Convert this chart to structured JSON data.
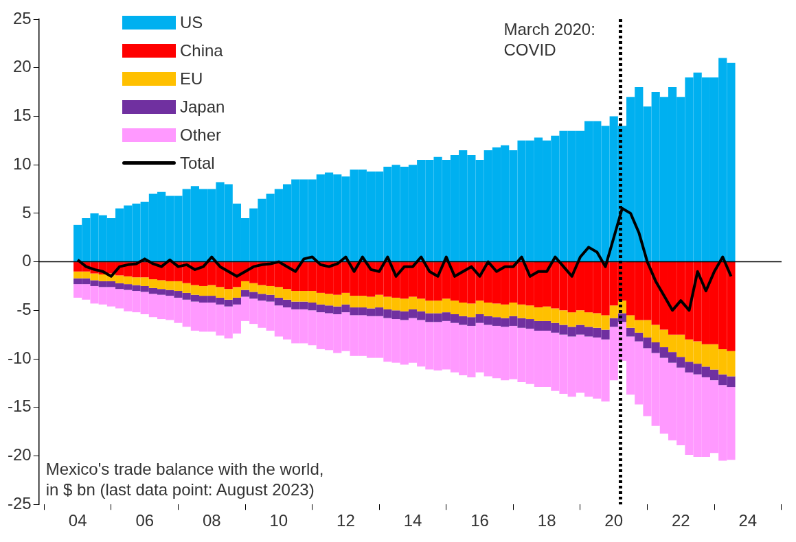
{
  "chart_data": {
    "type": "bar",
    "stacked": true,
    "x": [
      2004,
      2004.25,
      2004.5,
      2004.75,
      2005,
      2005.25,
      2005.5,
      2005.75,
      2006,
      2006.25,
      2006.5,
      2006.75,
      2007,
      2007.25,
      2007.5,
      2007.75,
      2008,
      2008.25,
      2008.5,
      2008.75,
      2009,
      2009.25,
      2009.5,
      2009.75,
      2010,
      2010.25,
      2010.5,
      2010.75,
      2011,
      2011.25,
      2011.5,
      2011.75,
      2012,
      2012.25,
      2012.5,
      2012.75,
      2013,
      2013.25,
      2013.5,
      2013.75,
      2014,
      2014.25,
      2014.5,
      2014.75,
      2015,
      2015.25,
      2015.5,
      2015.75,
      2016,
      2016.25,
      2016.5,
      2016.75,
      2017,
      2017.25,
      2017.5,
      2017.75,
      2018,
      2018.25,
      2018.5,
      2018.75,
      2019,
      2019.25,
      2019.5,
      2019.75,
      2020,
      2020.25,
      2020.5,
      2020.75,
      2021,
      2021.25,
      2021.5,
      2021.75,
      2022,
      2022.25,
      2022.5,
      2022.75,
      2023,
      2023.25,
      2023.5
    ],
    "series": [
      {
        "name": "US",
        "color": "#00b0f0",
        "values": [
          3.8,
          4.5,
          5,
          4.8,
          4.5,
          5.5,
          5.8,
          6,
          6.2,
          7,
          7.2,
          6.8,
          6.8,
          7.5,
          7.8,
          7.5,
          7.5,
          8.2,
          8,
          6,
          4.5,
          5.5,
          6.5,
          7,
          7.5,
          8,
          8.5,
          8.5,
          8.5,
          9,
          9.2,
          9,
          8.8,
          9.5,
          9.5,
          9.3,
          9.3,
          9.8,
          10,
          9.8,
          10,
          10.5,
          10.5,
          10.8,
          10.5,
          11,
          11.5,
          11,
          10.5,
          11.5,
          11.8,
          12,
          11.5,
          12.5,
          12.5,
          12.8,
          12.5,
          13,
          13.5,
          13.5,
          13.5,
          14.5,
          14.5,
          14,
          15,
          14,
          17,
          18,
          16,
          17.5,
          17,
          18,
          17,
          19,
          19.5,
          19,
          19,
          21,
          20.5
        ]
      },
      {
        "name": "China",
        "color": "#ff0000",
        "values": [
          -1,
          -1,
          -1.2,
          -1.3,
          -1.2,
          -1.4,
          -1.5,
          -1.6,
          -1.6,
          -1.8,
          -1.9,
          -2,
          -2,
          -2.2,
          -2.4,
          -2.5,
          -2.4,
          -2.6,
          -2.8,
          -2.6,
          -2,
          -2.2,
          -2.4,
          -2.5,
          -2.6,
          -2.8,
          -3,
          -3,
          -3,
          -3.2,
          -3.3,
          -3.4,
          -3.2,
          -3.5,
          -3.5,
          -3.6,
          -3.4,
          -3.6,
          -3.7,
          -3.8,
          -3.6,
          -3.8,
          -4,
          -4,
          -3.8,
          -4,
          -4.2,
          -4.3,
          -4,
          -4.2,
          -4.3,
          -4.4,
          -4.2,
          -4.4,
          -4.5,
          -4.7,
          -4.6,
          -4.8,
          -5,
          -5.2,
          -5,
          -5.2,
          -5.3,
          -5.5,
          -4.5,
          -4,
          -5.5,
          -6,
          -6,
          -6.5,
          -7,
          -7.5,
          -7.5,
          -8,
          -8.2,
          -8.5,
          -8.5,
          -9,
          -9.2
        ]
      },
      {
        "name": "EU",
        "color": "#ffc000",
        "values": [
          -0.7,
          -0.7,
          -0.7,
          -0.7,
          -0.8,
          -0.8,
          -0.8,
          -0.8,
          -0.9,
          -0.9,
          -0.9,
          -0.9,
          -1,
          -1,
          -1,
          -1,
          -1.1,
          -1.1,
          -1.1,
          -1.1,
          -0.9,
          -0.9,
          -0.9,
          -0.9,
          -1.1,
          -1.1,
          -1.1,
          -1.1,
          -1.2,
          -1.2,
          -1.2,
          -1.2,
          -1.2,
          -1.2,
          -1.2,
          -1.2,
          -1.3,
          -1.3,
          -1.3,
          -1.3,
          -1.3,
          -1.3,
          -1.3,
          -1.3,
          -1.4,
          -1.4,
          -1.4,
          -1.4,
          -1.4,
          -1.4,
          -1.4,
          -1.4,
          -1.4,
          -1.4,
          -1.4,
          -1.4,
          -1.5,
          -1.5,
          -1.5,
          -1.5,
          -1.5,
          -1.5,
          -1.5,
          -1.5,
          -1.3,
          -1.3,
          -1.3,
          -1.3,
          -1.8,
          -1.8,
          -1.8,
          -1.8,
          -2.3,
          -2.3,
          -2.3,
          -2.3,
          -2.6,
          -2.6,
          -2.6
        ]
      },
      {
        "name": "Japan",
        "color": "#7030a0",
        "values": [
          -0.6,
          -0.6,
          -0.6,
          -0.6,
          -0.6,
          -0.6,
          -0.6,
          -0.6,
          -0.6,
          -0.6,
          -0.6,
          -0.6,
          -0.7,
          -0.7,
          -0.7,
          -0.7,
          -0.7,
          -0.7,
          -0.7,
          -0.7,
          -0.7,
          -0.7,
          -0.7,
          -0.7,
          -0.8,
          -0.8,
          -0.8,
          -0.8,
          -0.8,
          -0.8,
          -0.8,
          -0.8,
          -0.8,
          -0.8,
          -0.8,
          -0.8,
          -0.9,
          -0.9,
          -0.9,
          -0.9,
          -0.9,
          -0.9,
          -0.9,
          -0.9,
          -0.9,
          -0.9,
          -0.9,
          -0.9,
          -0.9,
          -0.9,
          -0.9,
          -0.9,
          -1,
          -1,
          -1,
          -1,
          -1,
          -1,
          -1,
          -1,
          -1,
          -1,
          -1,
          -1,
          -0.9,
          -0.9,
          -0.9,
          -0.9,
          -1.1,
          -1.1,
          -1.1,
          -1.1,
          -1.1,
          -1.1,
          -1.1,
          -1.1,
          -1.1,
          -1.1,
          -1.1
        ]
      },
      {
        "name": "Other",
        "color": "#ff99ff",
        "values": [
          -1.4,
          -1.6,
          -1.8,
          -1.8,
          -2,
          -2,
          -2.2,
          -2.2,
          -2.3,
          -2.4,
          -2.5,
          -2.5,
          -2.6,
          -2.8,
          -3,
          -3,
          -3,
          -3.2,
          -3.3,
          -3,
          -2.5,
          -2.6,
          -2.8,
          -3,
          -3.2,
          -3.3,
          -3.5,
          -3.5,
          -3.6,
          -3.8,
          -3.8,
          -4,
          -4,
          -4.2,
          -4.2,
          -4.3,
          -4.3,
          -4.5,
          -4.5,
          -4.6,
          -4.6,
          -4.8,
          -4.9,
          -5,
          -5,
          -5.1,
          -5.2,
          -5.3,
          -5.1,
          -5.3,
          -5.4,
          -5.5,
          -5.5,
          -5.6,
          -5.7,
          -5.8,
          -5.8,
          -6,
          -6.1,
          -6.2,
          -6,
          -6.2,
          -6.3,
          -6.4,
          -5.5,
          -4,
          -6,
          -6.5,
          -7,
          -7.5,
          -7.8,
          -8,
          -8,
          -8.5,
          -8.5,
          -8.2,
          -7.5,
          -7.8,
          -7.5
        ]
      },
      {
        "name": "Total",
        "type": "line",
        "color": "#000000",
        "values": [
          0.2,
          -0.5,
          -0.8,
          -1,
          -1.5,
          -0.5,
          -0.3,
          -0.2,
          0.3,
          -0.2,
          -0.5,
          0.2,
          -0.5,
          -0.3,
          -0.8,
          -0.5,
          0.5,
          -0.5,
          -1,
          -1.5,
          -1,
          -0.5,
          -0.3,
          -0.2,
          0,
          -0.5,
          -1,
          0.3,
          0.5,
          -0.3,
          -0.5,
          -0.2,
          0.5,
          -1,
          0.5,
          -0.8,
          -1,
          0.5,
          -1.5,
          -0.5,
          -0.5,
          0.5,
          -1,
          -1.5,
          0.5,
          -1.5,
          -1,
          -0.5,
          -1.5,
          0,
          -1,
          -0.5,
          -0.5,
          0.5,
          -1.5,
          -1,
          -1,
          0.5,
          -0.5,
          -1.5,
          0.5,
          1.5,
          1,
          -0.5,
          2.5,
          5.5,
          5,
          3,
          0,
          -2,
          -3.5,
          -5,
          -4,
          -5,
          -1,
          -3,
          -1,
          0.5,
          -1.5
        ]
      }
    ],
    "ylim": [
      -25,
      25
    ],
    "yticks": [
      -25,
      -20,
      -15,
      -10,
      -5,
      0,
      5,
      10,
      15,
      20,
      25
    ],
    "xlim": [
      2003.85,
      2024
    ],
    "xticks": [
      {
        "value": 2004,
        "label": "04"
      },
      {
        "value": 2006,
        "label": "06"
      },
      {
        "value": 2008,
        "label": "08"
      },
      {
        "value": 2010,
        "label": "10"
      },
      {
        "value": 2012,
        "label": "12"
      },
      {
        "value": 2014,
        "label": "14"
      },
      {
        "value": 2016,
        "label": "16"
      },
      {
        "value": 2018,
        "label": "18"
      },
      {
        "value": 2020,
        "label": "20"
      },
      {
        "value": 2022,
        "label": "22"
      },
      {
        "value": 2024,
        "label": "24"
      }
    ],
    "ref_lines": [
      {
        "axis": "y",
        "value": 0,
        "color": "#000000",
        "line_style": "solid"
      },
      {
        "axis": "x",
        "value": 2020.2,
        "label": "March 2020: COVID",
        "color": "#000000",
        "line_style": "dotted"
      }
    ],
    "annotations": [
      "Mexico's trade balance with the world, in $ bn (last data point: August 2023)"
    ],
    "legend": "top left"
  }
}
